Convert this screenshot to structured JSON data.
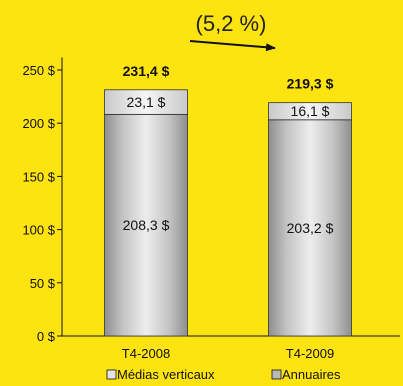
{
  "chart_data": {
    "type": "bar",
    "stacked": true,
    "categories": [
      "T4-2008",
      "T4-2009"
    ],
    "series": [
      {
        "name": "Annuaires",
        "values": [
          208.3,
          203.2
        ],
        "labels": [
          "208,3 $",
          "203,2 $"
        ],
        "color": "#B9B9B9"
      },
      {
        "name": "Médias verticaux",
        "values": [
          23.1,
          16.1
        ],
        "labels": [
          "23,1 $",
          "16,1 $"
        ],
        "color": "#E4E4E4"
      }
    ],
    "totals": [
      231.4,
      219.3
    ],
    "total_labels": [
      "231,4 $",
      "219,3 $"
    ],
    "yticks": [
      "0 $",
      "50 $",
      "100 $",
      "150 $",
      "200 $",
      "250 $"
    ],
    "ytick_values": [
      0,
      50,
      100,
      150,
      200,
      250
    ],
    "ylim": [
      0,
      260
    ],
    "annotation": "(5,2 %)",
    "legend_order": [
      "Médias verticaux",
      "Annuaires"
    ],
    "legend_position": "bottom",
    "background": "#FDE30F"
  }
}
